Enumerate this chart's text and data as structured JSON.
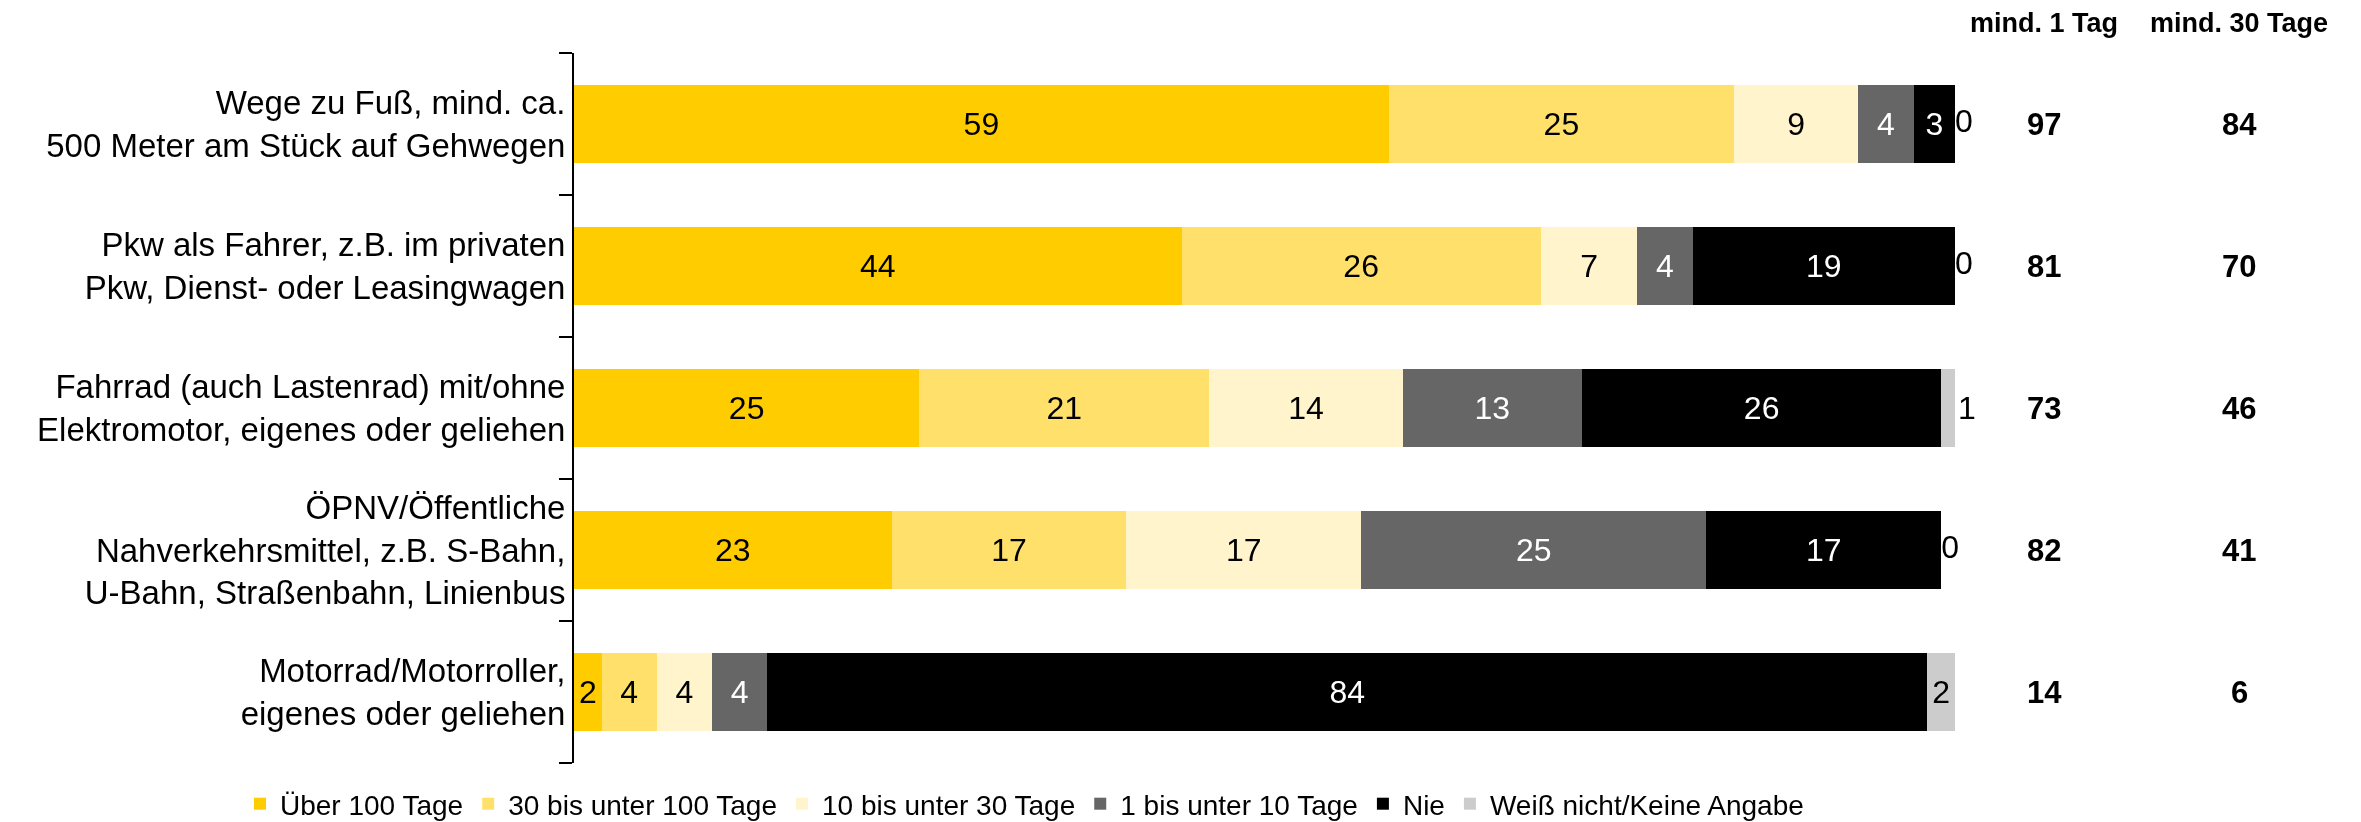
{
  "chart_data": {
    "type": "bar",
    "orientation": "horizontal",
    "stacked": true,
    "data_labels": true,
    "legend": "bottom",
    "categories": [
      "Wege zu Fuß, mind. ca.\n500 Meter am Stück auf Gehwegen",
      "Pkw als Fahrer, z.B. im privaten\nPkw, Dienst- oder Leasingwagen",
      "Fahrrad (auch Lastenrad) mit/ohne\nElektromotor, eigenes oder geliehen",
      "ÖPNV/Öffentliche\nNahverkehrsmittel, z.B. S-Bahn,\nU-Bahn, Straßenbahn, Linienbus",
      "Motorrad/Motorroller,\neigenes oder geliehen"
    ],
    "series": [
      {
        "name": "Über 100 Tage",
        "color": "#ffcc00",
        "values": [
          59,
          44,
          25,
          23,
          2
        ]
      },
      {
        "name": "30 bis unter 100 Tage",
        "color": "#ffe06b",
        "values": [
          25,
          26,
          21,
          17,
          4
        ]
      },
      {
        "name": "10 bis unter 30 Tage",
        "color": "#fff4cc",
        "values": [
          9,
          7,
          14,
          17,
          4
        ]
      },
      {
        "name": "1 bis unter 10 Tage",
        "color": "#666666",
        "values": [
          4,
          4,
          13,
          25,
          4
        ]
      },
      {
        "name": "Nie",
        "color": "#000000",
        "values": [
          3,
          19,
          26,
          17,
          84
        ]
      },
      {
        "name": "Weiß nicht/Keine Angabe",
        "color": "#cccccc",
        "values": [
          0,
          0,
          1,
          0,
          2
        ]
      }
    ],
    "annotations": [
      "mind. 1 Tag",
      "97",
      "81",
      "73",
      "82",
      "14",
      "mind. 30 Tage",
      "84",
      "70",
      "46",
      "41",
      "6"
    ]
  }
}
